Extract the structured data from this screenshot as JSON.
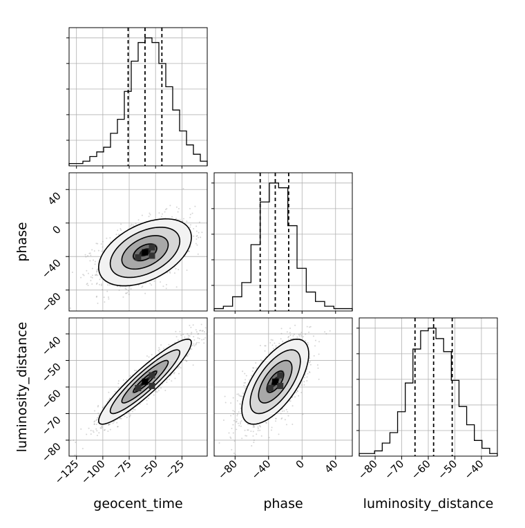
{
  "chart_data": {
    "type": "corner",
    "parameters": [
      {
        "name": "geocent_time",
        "xlabel": "geocent_time",
        "range": [
          -132,
          -1
        ],
        "ticks": [
          -125,
          -100,
          -75,
          -50,
          -25
        ],
        "tick_labels": [
          "−125",
          "−100",
          "−75",
          "−50",
          "−25"
        ],
        "quantiles": [
          -76,
          -60,
          -44
        ],
        "hist_bins": [
          1,
          1,
          2,
          4,
          6,
          8,
          14,
          20,
          32,
          45,
          53,
          55,
          53,
          44,
          34,
          24,
          15,
          9,
          5,
          2
        ]
      },
      {
        "name": "phase",
        "xlabel": "phase",
        "ylabel": "phase",
        "range": [
          -105,
          60
        ],
        "ticks": [
          -80,
          -40,
          0,
          40
        ],
        "tick_labels": [
          "−80",
          "−40",
          "0",
          "40"
        ],
        "quantiles": [
          -50,
          -32,
          -16
        ],
        "hist_bins": [
          1,
          2,
          6,
          12,
          28,
          46,
          54,
          52,
          36,
          18,
          8,
          4,
          2,
          1,
          1
        ]
      },
      {
        "name": "luminosity_distance",
        "xlabel": "luminosity_distance",
        "ylabel": "luminosity_distance",
        "range": [
          -86,
          -34
        ],
        "ticks": [
          -80,
          -70,
          -60,
          -50,
          -40
        ],
        "tick_labels": [
          "−80",
          "−70",
          "−60",
          "−50",
          "−40"
        ],
        "quantiles": [
          -65,
          -58,
          -51
        ],
        "hist_bins": [
          1,
          1,
          2,
          5,
          9,
          17,
          28,
          41,
          48,
          49,
          45,
          40,
          29,
          19,
          12,
          6,
          3,
          1
        ]
      }
    ],
    "pairs": [
      {
        "x": "geocent_time",
        "y": "phase",
        "mean": [
          -60,
          -35
        ],
        "std": [
          22,
          20
        ],
        "corr": 0.45
      },
      {
        "x": "geocent_time",
        "y": "luminosity_distance",
        "mean": [
          -60,
          -58
        ],
        "std": [
          22,
          8
        ],
        "corr": 0.92
      },
      {
        "x": "phase",
        "y": "luminosity_distance",
        "mean": [
          -32,
          -58
        ],
        "std": [
          20,
          8
        ],
        "corr": 0.65
      }
    ],
    "quantile_levels": [
      0.16,
      0.5,
      0.84
    ],
    "grid": true
  }
}
